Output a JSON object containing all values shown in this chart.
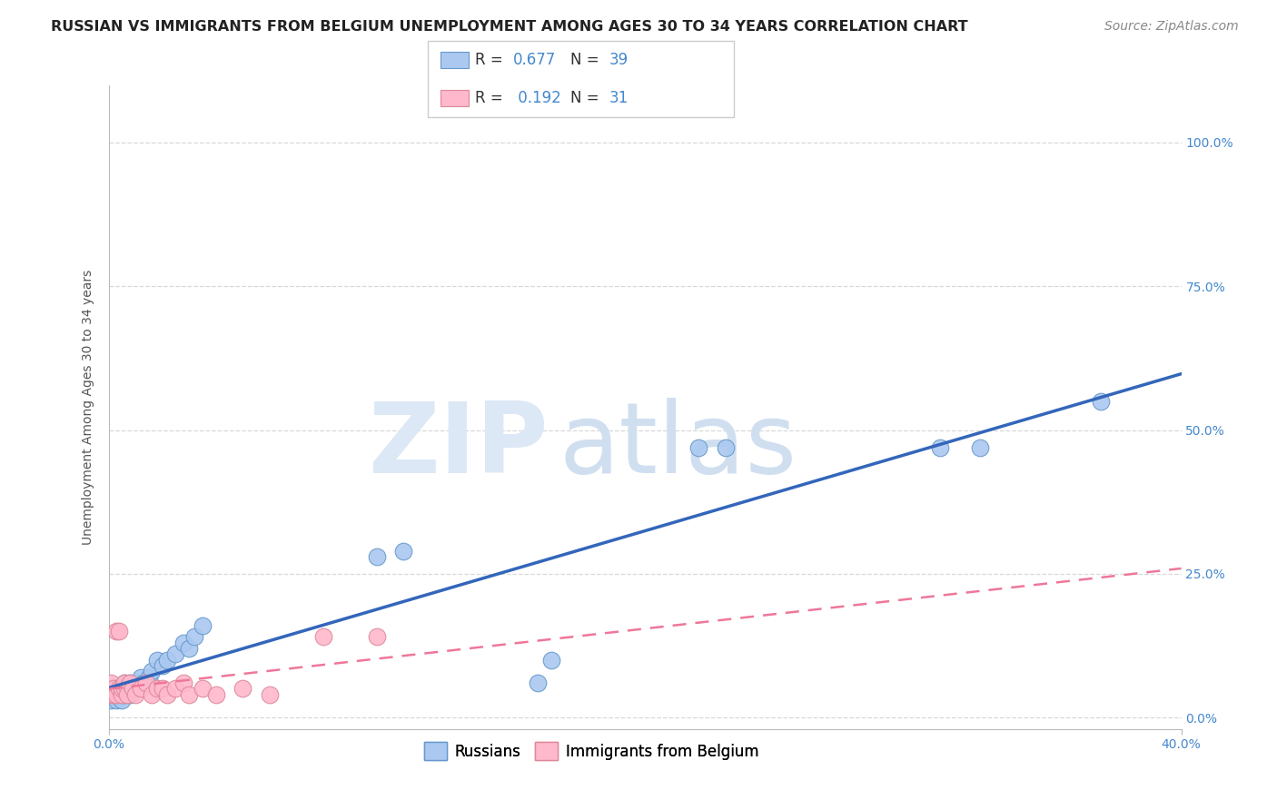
{
  "title": "RUSSIAN VS IMMIGRANTS FROM BELGIUM UNEMPLOYMENT AMONG AGES 30 TO 34 YEARS CORRELATION CHART",
  "source": "Source: ZipAtlas.com",
  "ylabel": "Unemployment Among Ages 30 to 34 years",
  "xlim": [
    0.0,
    0.4
  ],
  "ylim": [
    -0.02,
    1.1
  ],
  "ytick_positions": [
    0.0,
    0.25,
    0.5,
    0.75,
    1.0
  ],
  "ytick_labels": [
    "0.0%",
    "25.0%",
    "50.0%",
    "75.0%",
    "100.0%"
  ],
  "xtick_positions": [
    0.0,
    0.4
  ],
  "xtick_labels": [
    "0.0%",
    "40.0%"
  ],
  "background_color": "#ffffff",
  "grid_color": "#d8d8d8",
  "russian_color": "#aac8f0",
  "russian_edge_color": "#6699cc",
  "russian_line_color": "#3366bb",
  "belgium_color": "#ffb8cc",
  "belgium_edge_color": "#dd8899",
  "belgium_line_color": "#ee7799",
  "R_russian": "0.677",
  "N_russian": "39",
  "R_belgium": "0.192",
  "N_belgium": "31",
  "russian_x": [
    0.001,
    0.002,
    0.002,
    0.003,
    0.003,
    0.003,
    0.004,
    0.004,
    0.005,
    0.005,
    0.006,
    0.006,
    0.007,
    0.008,
    0.008,
    0.009,
    0.01,
    0.011,
    0.012,
    0.013,
    0.015,
    0.016,
    0.018,
    0.02,
    0.022,
    0.025,
    0.028,
    0.03,
    0.032,
    0.035,
    0.1,
    0.11,
    0.16,
    0.165,
    0.22,
    0.23,
    0.31,
    0.325,
    0.37
  ],
  "russian_y": [
    0.03,
    0.04,
    0.05,
    0.03,
    0.04,
    0.05,
    0.04,
    0.05,
    0.03,
    0.05,
    0.04,
    0.06,
    0.05,
    0.04,
    0.06,
    0.05,
    0.06,
    0.06,
    0.07,
    0.06,
    0.07,
    0.08,
    0.1,
    0.09,
    0.1,
    0.11,
    0.13,
    0.12,
    0.14,
    0.16,
    0.28,
    0.29,
    0.06,
    0.1,
    0.47,
    0.47,
    0.47,
    0.47,
    0.55
  ],
  "belgium_x": [
    0.001,
    0.001,
    0.002,
    0.002,
    0.003,
    0.003,
    0.004,
    0.004,
    0.005,
    0.005,
    0.006,
    0.006,
    0.007,
    0.008,
    0.009,
    0.01,
    0.012,
    0.014,
    0.016,
    0.018,
    0.02,
    0.022,
    0.025,
    0.028,
    0.03,
    0.035,
    0.04,
    0.05,
    0.06,
    0.08,
    0.1
  ],
  "belgium_y": [
    0.04,
    0.06,
    0.04,
    0.05,
    0.15,
    0.04,
    0.05,
    0.15,
    0.04,
    0.05,
    0.05,
    0.06,
    0.04,
    0.06,
    0.05,
    0.04,
    0.05,
    0.06,
    0.04,
    0.05,
    0.05,
    0.04,
    0.05,
    0.06,
    0.04,
    0.05,
    0.04,
    0.05,
    0.04,
    0.14,
    0.14
  ],
  "title_fontsize": 11.5,
  "source_fontsize": 10,
  "axis_label_fontsize": 10,
  "tick_fontsize": 10,
  "legend_fontsize": 12,
  "marker_size": 180,
  "watermark_zip_color": "#dce8f5",
  "watermark_atlas_color": "#d0dff0"
}
